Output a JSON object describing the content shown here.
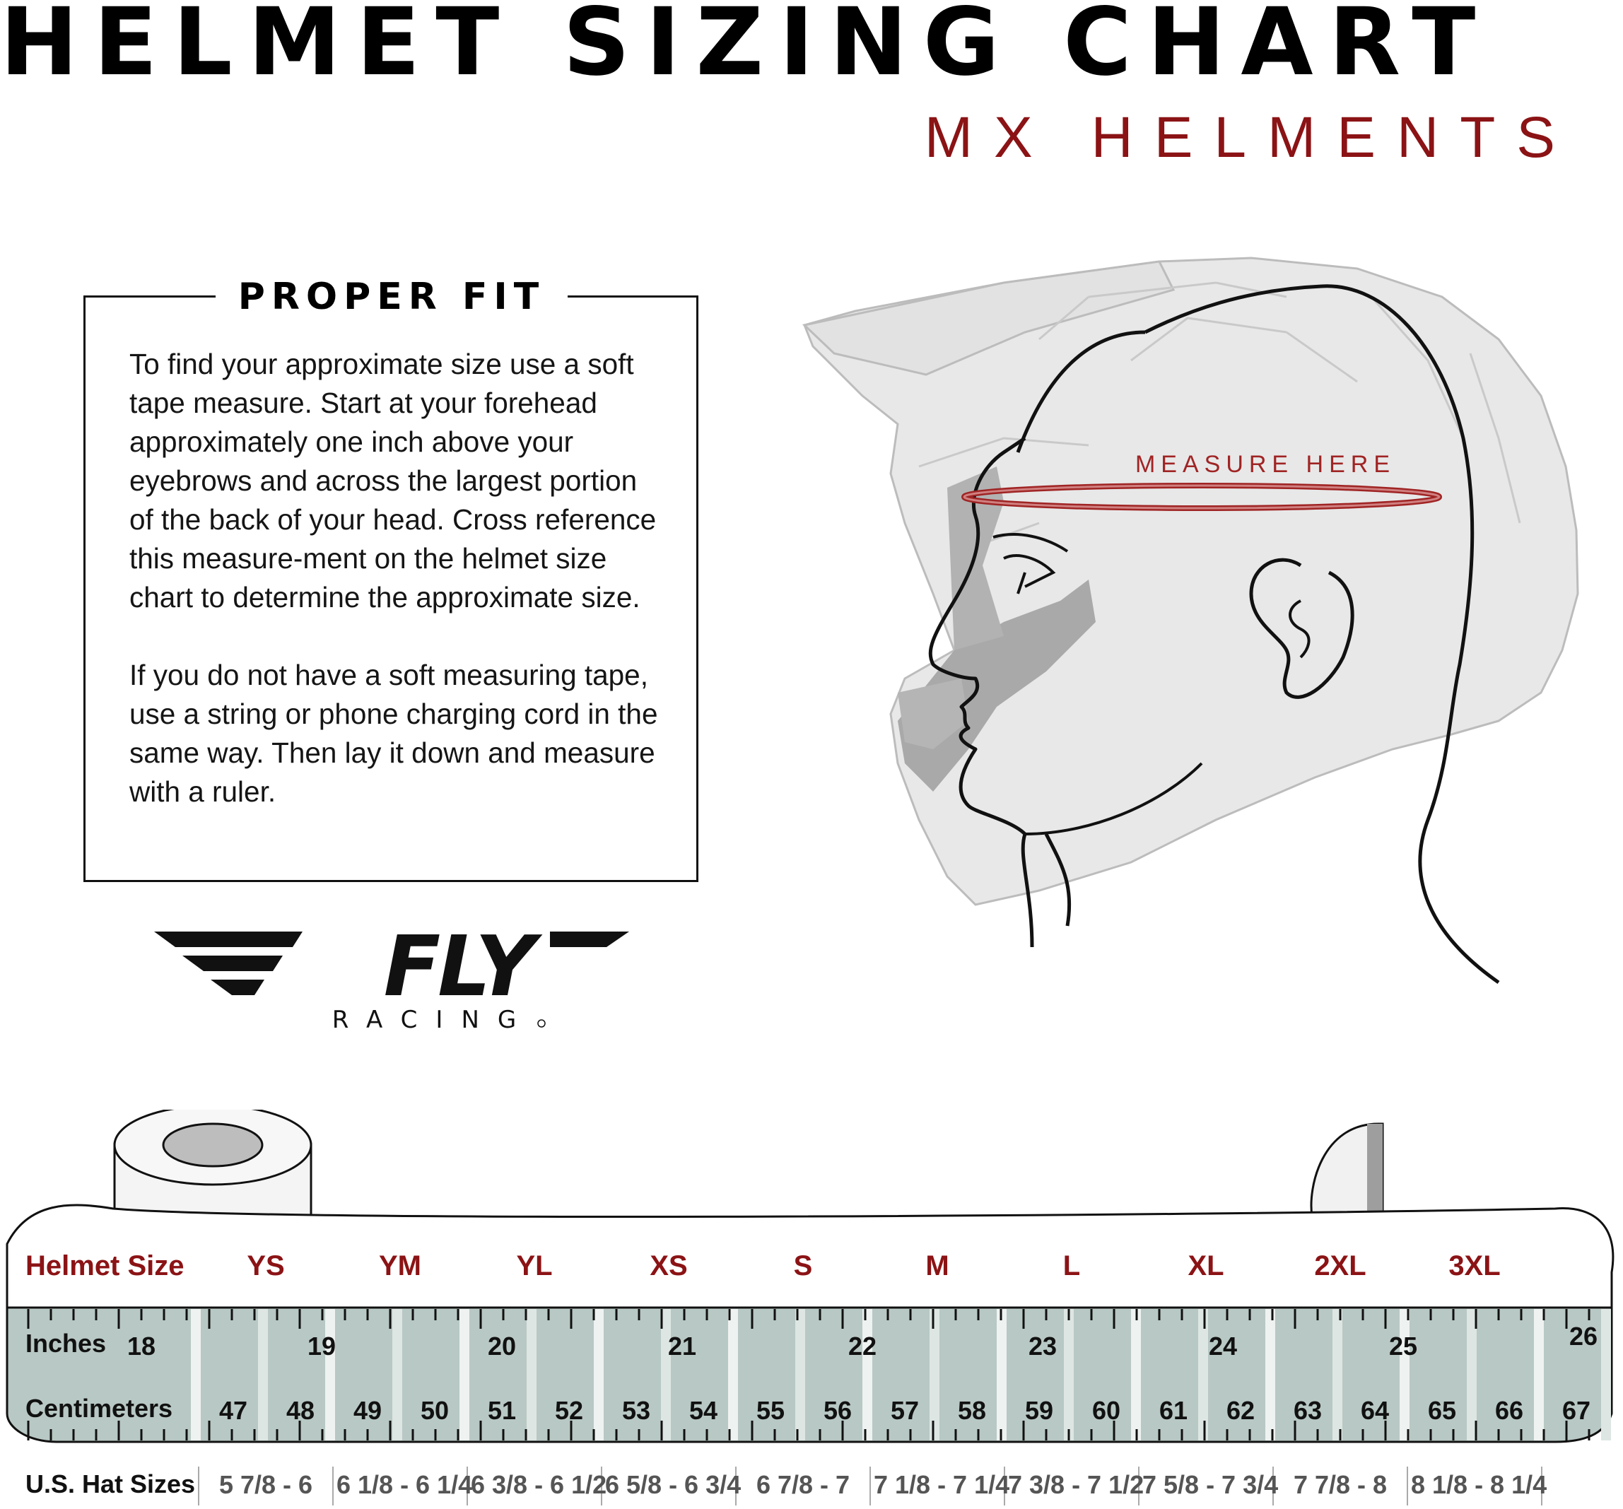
{
  "header": {
    "title": "HELMET SIZING CHART",
    "subtitle": "MX HELMENTS"
  },
  "proper_fit": {
    "heading": "PROPER FIT",
    "paragraph1": "To find your approximate size use a soft tape measure. Start at your forehead approximately one inch above your eyebrows and across the largest portion of the back of your head. Cross reference this measure-ment on the helmet size chart to determine the approximate size.",
    "paragraph2": "If you do not have a soft measuring tape, use a string or phone charging cord in the same way. Then lay it down and measure with a ruler."
  },
  "logo": {
    "brand": "FLY",
    "sub": "RACING"
  },
  "illustration": {
    "measure_label": "MEASURE HERE",
    "measure_color": "#a02424"
  },
  "chart": {
    "helmet_size_label": "Helmet Size",
    "sizes": [
      "YS",
      "YM",
      "YL",
      "XS",
      "S",
      "M",
      "L",
      "XL",
      "2XL",
      "3XL"
    ],
    "inches_label": "Inches",
    "inches": [
      "18",
      "19",
      "20",
      "21",
      "22",
      "23",
      "24",
      "25",
      "26"
    ],
    "centimeters_label": "Centimeters",
    "centimeters": [
      "47",
      "48",
      "49",
      "50",
      "51",
      "52",
      "53",
      "54",
      "55",
      "56",
      "57",
      "58",
      "59",
      "60",
      "61",
      "62",
      "63",
      "64",
      "65",
      "66",
      "67"
    ],
    "hat_label": "U.S. Hat Sizes",
    "hat_sizes": [
      "5 7/8 - 6",
      "6 1/8 - 6 1/4",
      "6 3/8 - 6 1/2",
      "6 5/8 - 6 3/4",
      "6 7/8 - 7",
      "7 1/8 - 7 1/4",
      "7 3/8 - 7 1/2",
      "7 5/8 - 7 3/4",
      "7 7/8 - 8",
      "8 1/8 - 8 1/4"
    ]
  },
  "colors": {
    "accent": "#8b1315",
    "tape_band": "#b8c8c4",
    "helmet_fill": "#e7e7e7"
  }
}
